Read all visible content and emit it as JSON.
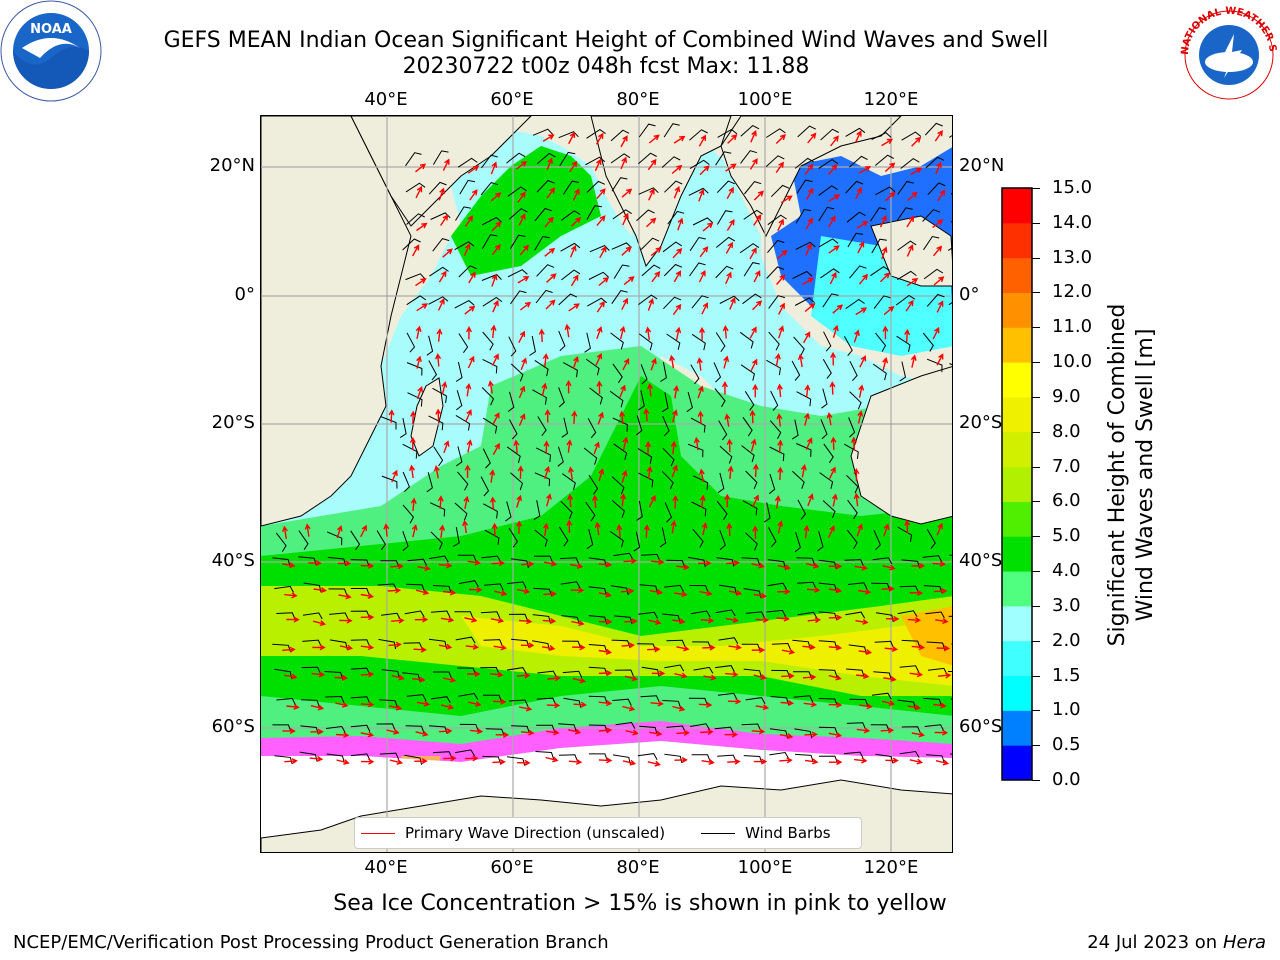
{
  "title": {
    "line1": "GEFS MEAN Indian Ocean Significant Height of Combined Wind Waves and Swell",
    "line2": "20230722 t00z 048h fcst   Max: 11.88"
  },
  "logos": {
    "noaa_text": "NOAA",
    "nws_text": "NATIONAL WEATHER SERVICE"
  },
  "map": {
    "lon_ticks_top": [
      "40°E",
      "60°E",
      "80°E",
      "100°E",
      "120°E"
    ],
    "lon_ticks_bottom": [
      "40°E",
      "60°E",
      "80°E",
      "100°E",
      "120°E"
    ],
    "lat_ticks_left": [
      "20°N",
      "0°",
      "20°S",
      "40°S",
      "60°S"
    ],
    "lat_ticks_right": [
      "20°N",
      "0°",
      "20°S",
      "40°S",
      "60°S"
    ],
    "colors": {
      "land": "#efeedd",
      "ice_region": "#ffffff",
      "wave_arrow": "#ff0000",
      "wind_barb": "#000000"
    }
  },
  "legend": {
    "wave_label": "Primary Wave Direction (unscaled)",
    "barb_label": "Wind Barbs"
  },
  "colorbar": {
    "label": "Significant Height of Combined Wind Waves and Swell [m]",
    "label_line1": "Significant Height of Combined",
    "label_line2": "Wind Waves and Swell [m]",
    "levels": [
      "0.0",
      "0.5",
      "1.0",
      "1.5",
      "2.0",
      "3.0",
      "4.0",
      "5.0",
      "6.0",
      "7.0",
      "8.0",
      "9.0",
      "10.0",
      "11.0",
      "12.0",
      "13.0",
      "14.0",
      "15.0"
    ],
    "colors": [
      "#0000ff",
      "#0080ff",
      "#00ffff",
      "#40ffff",
      "#a0ffff",
      "#50ff80",
      "#00e000",
      "#50ee00",
      "#b0f000",
      "#d0f000",
      "#eef000",
      "#ffff00",
      "#ffc000",
      "#ff9000",
      "#ff6000",
      "#ff3000",
      "#ff0000"
    ]
  },
  "footer": {
    "caption": "Sea Ice Concentration > 15% is shown in pink to yellow",
    "left": "NCEP/EMC/Verification Post Processing Product Generation Branch",
    "right_date": "24 Jul 2023 on ",
    "right_host": "Hera"
  }
}
